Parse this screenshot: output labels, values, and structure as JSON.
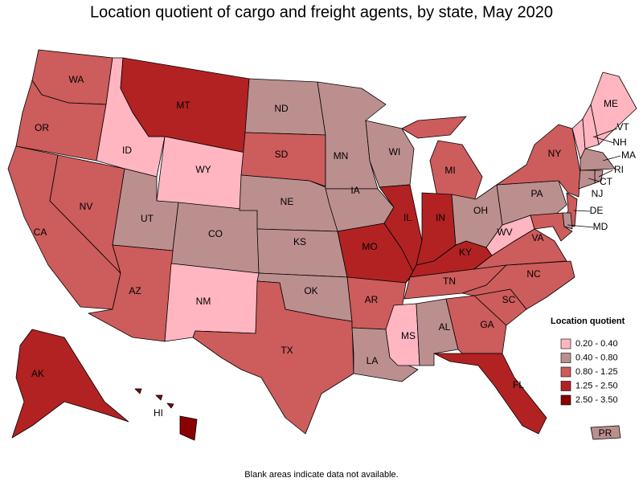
{
  "title": "Location quotient of cargo and freight agents, by state, May 2020",
  "footnote": "Blank areas indicate data not available.",
  "legend": {
    "title": "Location quotient",
    "items": [
      {
        "label": "0.20 - 0.40",
        "color": "#ffb6c1"
      },
      {
        "label": "0.40 - 0.80",
        "color": "#bc8f8f"
      },
      {
        "label": "0.80 - 1.25",
        "color": "#cd5c5c"
      },
      {
        "label": "1.25 - 2.50",
        "color": "#b22222"
      },
      {
        "label": "2.50 - 3.50",
        "color": "#8b0000"
      }
    ]
  },
  "states": [
    {
      "abbr": "WA",
      "range": "0.80 - 1.25"
    },
    {
      "abbr": "OR",
      "range": "0.80 - 1.25"
    },
    {
      "abbr": "CA",
      "range": "0.80 - 1.25"
    },
    {
      "abbr": "NV",
      "range": "0.80 - 1.25"
    },
    {
      "abbr": "ID",
      "range": "0.20 - 0.40"
    },
    {
      "abbr": "MT",
      "range": "1.25 - 2.50"
    },
    {
      "abbr": "WY",
      "range": "0.20 - 0.40"
    },
    {
      "abbr": "UT",
      "range": "0.40 - 0.80"
    },
    {
      "abbr": "CO",
      "range": "0.40 - 0.80"
    },
    {
      "abbr": "AZ",
      "range": "0.80 - 1.25"
    },
    {
      "abbr": "NM",
      "range": "0.20 - 0.40"
    },
    {
      "abbr": "ND",
      "range": "0.40 - 0.80"
    },
    {
      "abbr": "SD",
      "range": "0.80 - 1.25"
    },
    {
      "abbr": "NE",
      "range": "0.40 - 0.80"
    },
    {
      "abbr": "KS",
      "range": "0.40 - 0.80"
    },
    {
      "abbr": "OK",
      "range": "0.40 - 0.80"
    },
    {
      "abbr": "TX",
      "range": "0.80 - 1.25"
    },
    {
      "abbr": "MN",
      "range": "0.40 - 0.80"
    },
    {
      "abbr": "IA",
      "range": "0.40 - 0.80"
    },
    {
      "abbr": "MO",
      "range": "1.25 - 2.50"
    },
    {
      "abbr": "AR",
      "range": "0.80 - 1.25"
    },
    {
      "abbr": "LA",
      "range": "0.40 - 0.80"
    },
    {
      "abbr": "WI",
      "range": "0.40 - 0.80"
    },
    {
      "abbr": "IL",
      "range": "1.25 - 2.50"
    },
    {
      "abbr": "MS",
      "range": "0.20 - 0.40"
    },
    {
      "abbr": "MI",
      "range": "0.80 - 1.25"
    },
    {
      "abbr": "IN",
      "range": "1.25 - 2.50"
    },
    {
      "abbr": "KY",
      "range": "1.25 - 2.50"
    },
    {
      "abbr": "TN",
      "range": "0.80 - 1.25"
    },
    {
      "abbr": "AL",
      "range": "0.40 - 0.80"
    },
    {
      "abbr": "OH",
      "range": "0.40 - 0.80"
    },
    {
      "abbr": "GA",
      "range": "0.80 - 1.25"
    },
    {
      "abbr": "FL",
      "range": "1.25 - 2.50"
    },
    {
      "abbr": "SC",
      "range": "0.80 - 1.25"
    },
    {
      "abbr": "NC",
      "range": "0.80 - 1.25"
    },
    {
      "abbr": "VA",
      "range": "0.80 - 1.25"
    },
    {
      "abbr": "WV",
      "range": "0.20 - 0.40"
    },
    {
      "abbr": "PA",
      "range": "0.40 - 0.80"
    },
    {
      "abbr": "NY",
      "range": "0.80 - 1.25"
    },
    {
      "abbr": "ME",
      "range": "0.20 - 0.40"
    },
    {
      "abbr": "VT",
      "range": "0.20 - 0.40"
    },
    {
      "abbr": "NH",
      "range": "0.20 - 0.40"
    },
    {
      "abbr": "MA",
      "range": "0.40 - 0.80"
    },
    {
      "abbr": "RI",
      "range": "0.40 - 0.80"
    },
    {
      "abbr": "CT",
      "range": "0.40 - 0.80"
    },
    {
      "abbr": "NJ",
      "range": "0.80 - 1.25"
    },
    {
      "abbr": "DE",
      "range": "0.40 - 0.80"
    },
    {
      "abbr": "MD",
      "range": "0.80 - 1.25"
    },
    {
      "abbr": "AK",
      "range": "1.25 - 2.50"
    },
    {
      "abbr": "HI",
      "range": "2.50 - 3.50"
    },
    {
      "abbr": "PR",
      "range": "0.40 - 0.80"
    }
  ]
}
